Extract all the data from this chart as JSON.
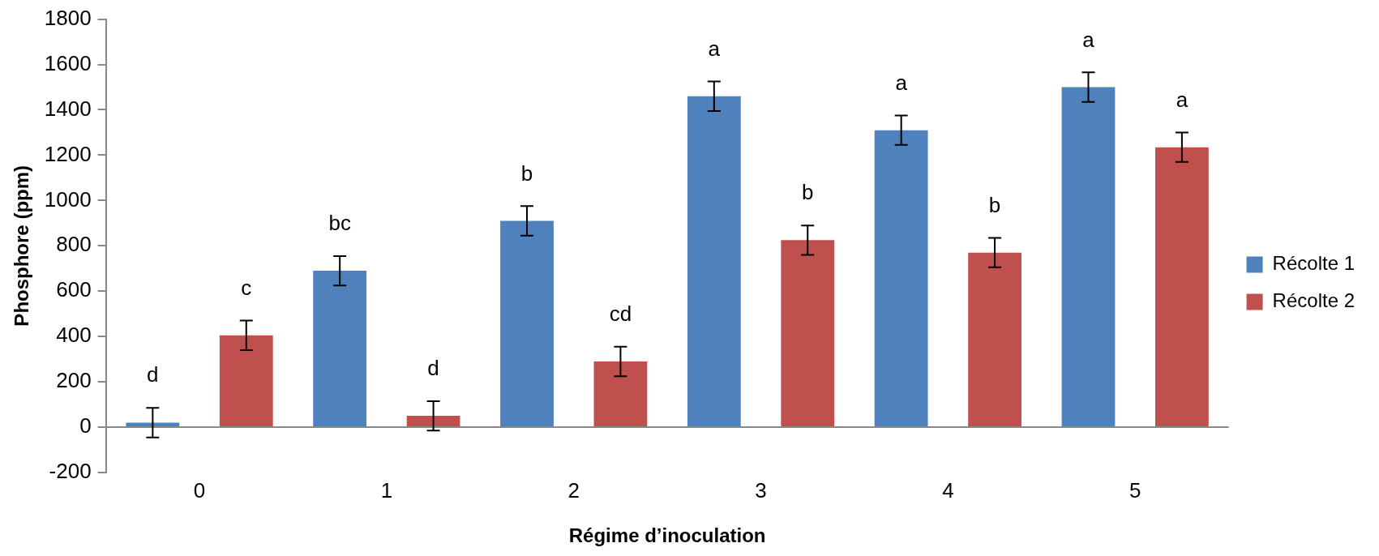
{
  "chart_data": {
    "type": "bar",
    "xlabel": "Régime d’inoculation",
    "ylabel": "Phosphore (ppm)",
    "categories": [
      "0",
      "1",
      "2",
      "3",
      "4",
      "5"
    ],
    "series": [
      {
        "name": "Récolte 1",
        "color": "#4f81bd",
        "values": [
          20,
          690,
          910,
          1460,
          1310,
          1500
        ],
        "errors": [
          65,
          65,
          65,
          65,
          65,
          65
        ],
        "value_labels": [
          "d",
          "bc",
          "b",
          "a",
          "a",
          "a"
        ]
      },
      {
        "name": "Récolte 2",
        "color": "#c0504d",
        "values": [
          405,
          50,
          290,
          825,
          770,
          1235
        ],
        "errors": [
          65,
          65,
          65,
          65,
          65,
          65
        ],
        "value_labels": [
          "c",
          "d",
          "cd",
          "b",
          "b",
          "a"
        ]
      }
    ],
    "ylim": [
      -200,
      1800
    ],
    "yticks": [
      -200,
      0,
      200,
      400,
      600,
      800,
      1000,
      1200,
      1400,
      1600,
      1800
    ],
    "grid": false,
    "legend": "right"
  }
}
